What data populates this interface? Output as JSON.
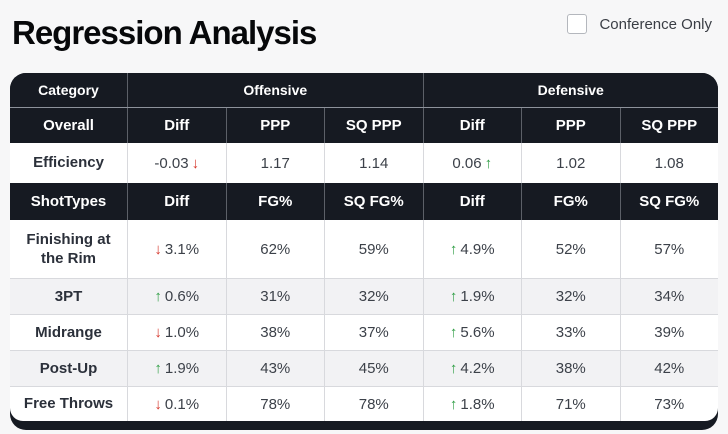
{
  "page": {
    "title": "Regression Analysis",
    "conference_checkbox_label": "Conference Only",
    "conference_checkbox_checked": false
  },
  "icons": {
    "up_arrow": "↑",
    "down_arrow": "↓"
  },
  "colors": {
    "header_dark": "#161a22",
    "positive_green": "#2f9e44",
    "negative_red": "#d6362b",
    "stripe_gray": "#f2f2f4"
  },
  "table": {
    "category_header": {
      "label": "Category",
      "groups": [
        "Offensive",
        "Defensive"
      ]
    },
    "sections": [
      {
        "header": {
          "label": "Overall",
          "cols": [
            "Diff",
            "PPP",
            "SQ PPP",
            "Diff",
            "PPP",
            "SQ PPP"
          ]
        },
        "rows": [
          {
            "label": "Efficiency",
            "striped": false,
            "cells": [
              {
                "text": "-0.03",
                "arrow": "down",
                "arrow_pos": "after"
              },
              {
                "text": "1.17"
              },
              {
                "text": "1.14"
              },
              {
                "text": "0.06",
                "arrow": "up",
                "arrow_pos": "after"
              },
              {
                "text": "1.02"
              },
              {
                "text": "1.08"
              }
            ]
          }
        ]
      },
      {
        "header": {
          "label": "ShotTypes",
          "cols": [
            "Diff",
            "FG%",
            "SQ FG%",
            "Diff",
            "FG%",
            "SQ FG%"
          ]
        },
        "rows": [
          {
            "label": "Finishing at the Rim",
            "striped": false,
            "cells": [
              {
                "text": "3.1%",
                "arrow": "down",
                "arrow_pos": "before"
              },
              {
                "text": "62%"
              },
              {
                "text": "59%"
              },
              {
                "text": "4.9%",
                "arrow": "up",
                "arrow_pos": "before"
              },
              {
                "text": "52%"
              },
              {
                "text": "57%"
              }
            ]
          },
          {
            "label": "3PT",
            "striped": true,
            "cells": [
              {
                "text": "0.6%",
                "arrow": "up",
                "arrow_pos": "before"
              },
              {
                "text": "31%"
              },
              {
                "text": "32%"
              },
              {
                "text": "1.9%",
                "arrow": "up",
                "arrow_pos": "before"
              },
              {
                "text": "32%"
              },
              {
                "text": "34%"
              }
            ]
          },
          {
            "label": "Midrange",
            "striped": false,
            "cells": [
              {
                "text": "1.0%",
                "arrow": "down",
                "arrow_pos": "before"
              },
              {
                "text": "38%"
              },
              {
                "text": "37%"
              },
              {
                "text": "5.6%",
                "arrow": "up",
                "arrow_pos": "before"
              },
              {
                "text": "33%"
              },
              {
                "text": "39%"
              }
            ]
          },
          {
            "label": "Post-Up",
            "striped": true,
            "cells": [
              {
                "text": "1.9%",
                "arrow": "up",
                "arrow_pos": "before"
              },
              {
                "text": "43%"
              },
              {
                "text": "45%"
              },
              {
                "text": "4.2%",
                "arrow": "up",
                "arrow_pos": "before"
              },
              {
                "text": "38%"
              },
              {
                "text": "42%"
              }
            ]
          },
          {
            "label": "Free Throws",
            "striped": false,
            "cells": [
              {
                "text": "0.1%",
                "arrow": "down",
                "arrow_pos": "before"
              },
              {
                "text": "78%"
              },
              {
                "text": "78%"
              },
              {
                "text": "1.8%",
                "arrow": "up",
                "arrow_pos": "before"
              },
              {
                "text": "71%"
              },
              {
                "text": "73%"
              }
            ]
          }
        ]
      }
    ]
  }
}
